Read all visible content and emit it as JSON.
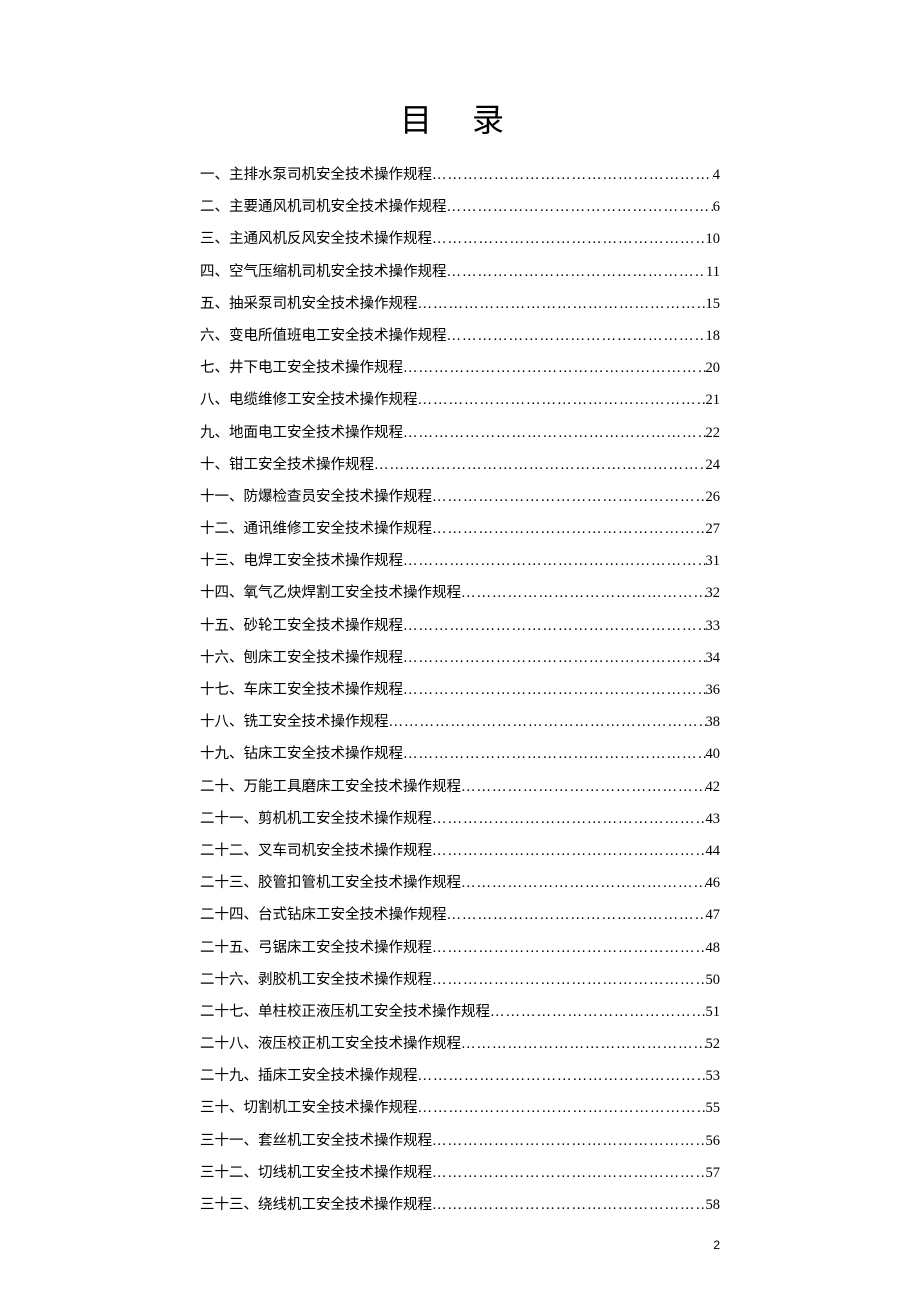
{
  "title": "目 录",
  "page_number": "2",
  "dots": "………………………………………………………………………………………………………………………………",
  "text_color": "#000000",
  "background_color": "#ffffff",
  "title_fontsize": 32,
  "entry_fontsize": 14.5,
  "entries": [
    {
      "label": "一、主排水泵司机安全技术操作规程",
      "page": "4"
    },
    {
      "label": "二、主要通风机司机安全技术操作规程",
      "page": "6"
    },
    {
      "label": "三、主通风机反风安全技术操作规程",
      "page": "10"
    },
    {
      "label": "四、空气压缩机司机安全技术操作规程 ",
      "page": "11"
    },
    {
      "label": "五、抽采泵司机安全技术操作规程",
      "page": "15"
    },
    {
      "label": "六、变电所值班电工安全技术操作规程",
      "page": "18"
    },
    {
      "label": "七、井下电工安全技术操作规程",
      "page": "20"
    },
    {
      "label": "八、电缆维修工安全技术操作规程",
      "page": "21"
    },
    {
      "label": "九、地面电工安全技术操作规程",
      "page": "22"
    },
    {
      "label": "十、钳工安全技术操作规程",
      "page": "24"
    },
    {
      "label": "十一、防爆检查员安全技术操作规程",
      "page": "26"
    },
    {
      "label": "十二、通讯维修工安全技术操作规程",
      "page": "27"
    },
    {
      "label": "十三、电焊工安全技术操作规程",
      "page": "31"
    },
    {
      "label": "十四、氧气乙炔焊割工安全技术操作规程",
      "page": "32"
    },
    {
      "label": "十五、砂轮工安全技术操作规程",
      "page": "33"
    },
    {
      "label": "十六、刨床工安全技术操作规程",
      "page": "34"
    },
    {
      "label": "十七、车床工安全技术操作规程",
      "page": "36"
    },
    {
      "label": "十八、铣工安全技术操作规程",
      "page": "38"
    },
    {
      "label": "十九、钻床工安全技术操作规程",
      "page": "40"
    },
    {
      "label": "二十、万能工具磨床工安全技术操作规程",
      "page": "42"
    },
    {
      "label": "二十一、剪机机工安全技术操作规程",
      "page": "43"
    },
    {
      "label": "二十二、叉车司机安全技术操作规程",
      "page": "44"
    },
    {
      "label": "二十三、胶管扣管机工安全技术操作规程",
      "page": "46"
    },
    {
      "label": "二十四、台式钻床工安全技术操作规程",
      "page": "47"
    },
    {
      "label": "二十五、弓锯床工安全技术操作规程",
      "page": "48"
    },
    {
      "label": "二十六、剥胶机工安全技术操作规程",
      "page": "50"
    },
    {
      "label": "二十七、单柱校正液压机工安全技术操作规程",
      "page": "51"
    },
    {
      "label": "二十八、液压校正机工安全技术操作规程",
      "page": "52"
    },
    {
      "label": "二十九、插床工安全技术操作规程",
      "page": "53"
    },
    {
      "label": "三十、切割机工安全技术操作规程",
      "page": "55"
    },
    {
      "label": "三十一、套丝机工安全技术操作规程",
      "page": "56"
    },
    {
      "label": "三十二、切线机工安全技术操作规程",
      "page": "57"
    },
    {
      "label": "三十三、绕线机工安全技术操作规程",
      "page": "58"
    }
  ]
}
